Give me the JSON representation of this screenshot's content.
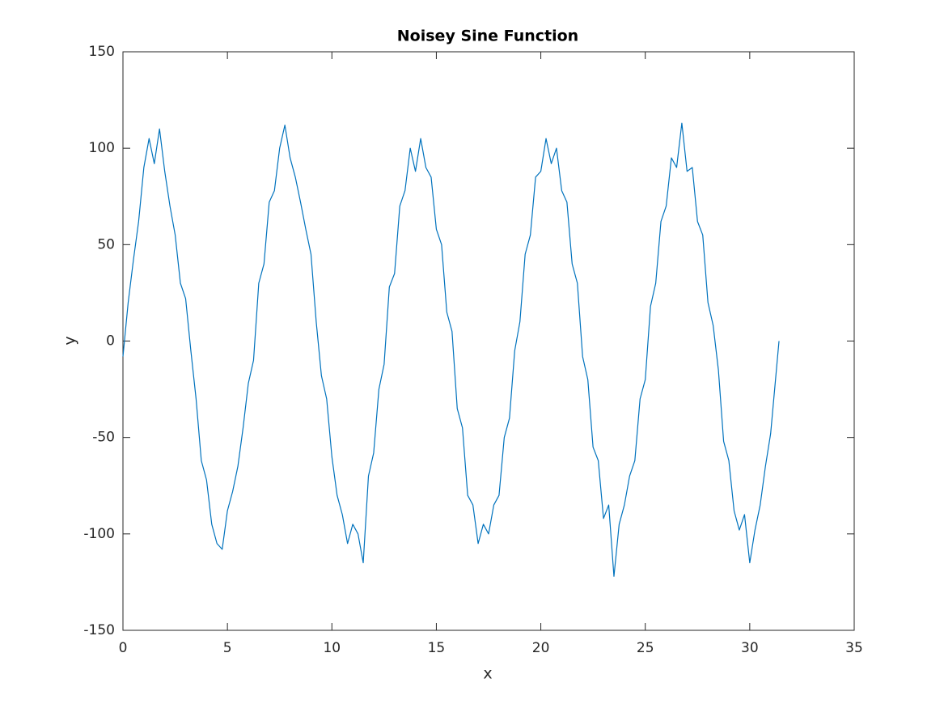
{
  "chart_data": {
    "type": "line",
    "title": "Noisey Sine Function",
    "x_label": "x",
    "y_label": "y",
    "x": [
      0,
      0.25,
      0.5,
      0.75,
      1,
      1.25,
      1.5,
      1.75,
      2,
      2.25,
      2.5,
      2.75,
      3,
      3.25,
      3.5,
      3.75,
      4,
      4.25,
      4.5,
      4.75,
      5,
      5.25,
      5.5,
      5.75,
      6,
      6.25,
      6.5,
      6.75,
      7,
      7.25,
      7.5,
      7.75,
      8,
      8.25,
      8.5,
      8.75,
      9,
      9.25,
      9.5,
      9.75,
      10,
      10.25,
      10.5,
      10.75,
      11,
      11.25,
      11.5,
      11.75,
      12,
      12.25,
      12.5,
      12.75,
      13,
      13.25,
      13.5,
      13.75,
      14,
      14.25,
      14.5,
      14.75,
      15,
      15.25,
      15.5,
      15.75,
      16,
      16.25,
      16.5,
      16.75,
      17,
      17.25,
      17.5,
      17.75,
      18,
      18.25,
      18.5,
      18.75,
      19,
      19.25,
      19.5,
      19.75,
      20,
      20.25,
      20.5,
      20.75,
      21,
      21.25,
      21.5,
      21.75,
      22,
      22.25,
      22.5,
      22.75,
      23,
      23.25,
      23.5,
      23.75,
      24,
      24.25,
      24.5,
      24.75,
      25,
      25.25,
      25.5,
      25.75,
      26,
      26.25,
      26.5,
      26.75,
      27,
      27.25,
      27.5,
      27.75,
      28,
      28.25,
      28.5,
      28.75,
      29,
      29.25,
      29.5,
      29.75,
      30,
      30.25,
      30.5,
      30.75,
      31,
      31.25,
      31.4
    ],
    "series": [
      {
        "color": "#0072bd",
        "values": [
          -8,
          20,
          42,
          62,
          90,
          105,
          92,
          110,
          88,
          70,
          55,
          30,
          22,
          -5,
          -30,
          -62,
          -72,
          -95,
          -105,
          -108,
          -88,
          -78,
          -65,
          -45,
          -22,
          -10,
          30,
          40,
          72,
          78,
          100,
          112,
          95,
          85,
          72,
          58,
          45,
          10,
          -18,
          -30,
          -60,
          -80,
          -90,
          -105,
          -95,
          -100,
          -115,
          -70,
          -58,
          -25,
          -12,
          28,
          35,
          70,
          78,
          100,
          88,
          105,
          90,
          85,
          58,
          50,
          15,
          5,
          -35,
          -45,
          -80,
          -85,
          -105,
          -95,
          -100,
          -85,
          -80,
          -50,
          -40,
          -5,
          10,
          45,
          55,
          85,
          88,
          105,
          92,
          100,
          78,
          72,
          40,
          30,
          -8,
          -20,
          -55,
          -62,
          -92,
          -85,
          -122,
          -95,
          -85,
          -70,
          -62,
          -30,
          -20,
          18,
          30,
          62,
          70,
          95,
          90,
          113,
          88,
          90,
          62,
          55,
          20,
          8,
          -15,
          -52,
          -62,
          -88,
          -98,
          -90,
          -115,
          -98,
          -85,
          -65,
          -48,
          -18,
          0
        ]
      }
    ],
    "xlim": [
      0,
      35
    ],
    "xticks": [
      0,
      5,
      10,
      15,
      20,
      25,
      30,
      35
    ],
    "ylim": [
      -150,
      150
    ],
    "yticks": [
      -150,
      -100,
      -50,
      0,
      50,
      100,
      150
    ]
  }
}
